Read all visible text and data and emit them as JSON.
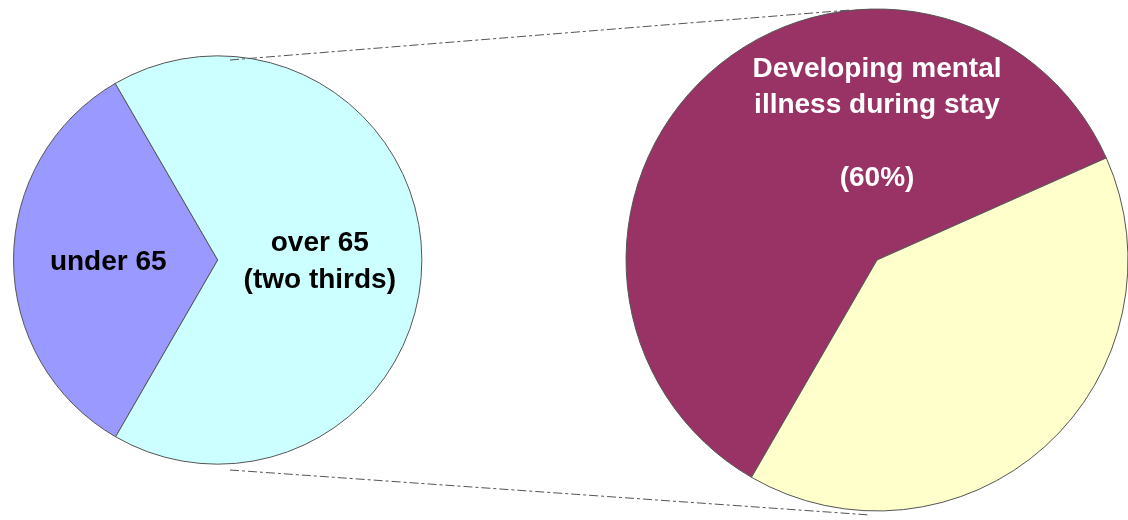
{
  "chart_data": [
    {
      "type": "pie",
      "categories": [
        "under 65",
        "over 65\n(two thirds)"
      ],
      "values": [
        33.3,
        66.7
      ],
      "colors": [
        "#9999ff",
        "#ccffff"
      ]
    },
    {
      "type": "pie",
      "categories": [
        "Developing mental\nillness during stay\n\n(60%)",
        null
      ],
      "values": [
        60,
        40
      ],
      "colors": [
        "#993366",
        "#ffffcc"
      ]
    }
  ]
}
